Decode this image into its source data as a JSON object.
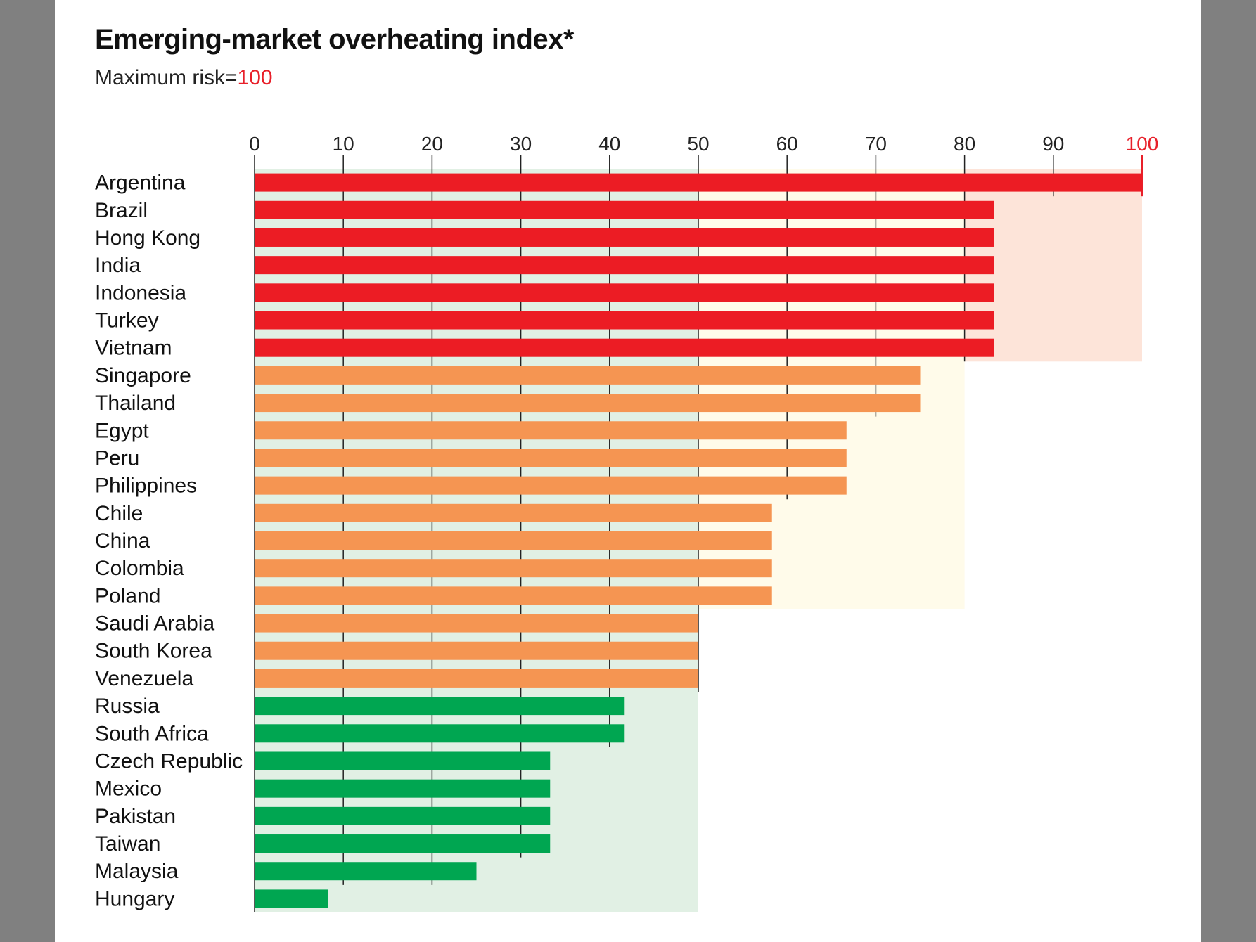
{
  "title": "Emerging-market overheating index*",
  "subtitle": {
    "prefix": "Maximum risk=",
    "value": "100"
  },
  "colors": {
    "high": "#ec1c24",
    "medium": "#f59552",
    "low": "#00a651",
    "band_low": "#e1f0e4",
    "band_medium": "#fffbea",
    "band_high": "#fde4d9",
    "accent_red": "#e8202a"
  },
  "chart_data": {
    "type": "bar",
    "orientation": "horizontal",
    "xlim": [
      0,
      100
    ],
    "x_ticks": [
      "0",
      "10",
      "20",
      "30",
      "40",
      "50",
      "60",
      "70",
      "80",
      "90",
      "100"
    ],
    "grid": true,
    "bands": [
      {
        "from": 0,
        "to": 50,
        "color": "#e1f0e4"
      },
      {
        "from": 50,
        "to": 80,
        "color": "#fffbea"
      },
      {
        "from": 80,
        "to": 100,
        "color": "#fde4d9"
      }
    ],
    "categories": [
      "Argentina",
      "Brazil",
      "Hong Kong",
      "India",
      "Indonesia",
      "Turkey",
      "Vietnam",
      "Singapore",
      "Thailand",
      "Egypt",
      "Peru",
      "Philippines",
      "Chile",
      "China",
      "Colombia",
      "Poland",
      "Saudi Arabia",
      "South Korea",
      "Venezuela",
      "Russia",
      "South Africa",
      "Czech Republic",
      "Mexico",
      "Pakistan",
      "Taiwan",
      "Malaysia",
      "Hungary"
    ],
    "values": [
      100,
      83.3,
      83.3,
      83.3,
      83.3,
      83.3,
      83.3,
      75,
      75,
      66.7,
      66.7,
      66.7,
      58.3,
      58.3,
      58.3,
      58.3,
      50,
      50,
      50,
      41.7,
      41.7,
      33.3,
      33.3,
      33.3,
      33.3,
      25,
      8.3
    ],
    "risk_level": [
      "high",
      "high",
      "high",
      "high",
      "high",
      "high",
      "high",
      "medium",
      "medium",
      "medium",
      "medium",
      "medium",
      "medium",
      "medium",
      "medium",
      "medium",
      "medium",
      "medium",
      "medium",
      "low",
      "low",
      "low",
      "low",
      "low",
      "low",
      "low",
      "low"
    ]
  }
}
